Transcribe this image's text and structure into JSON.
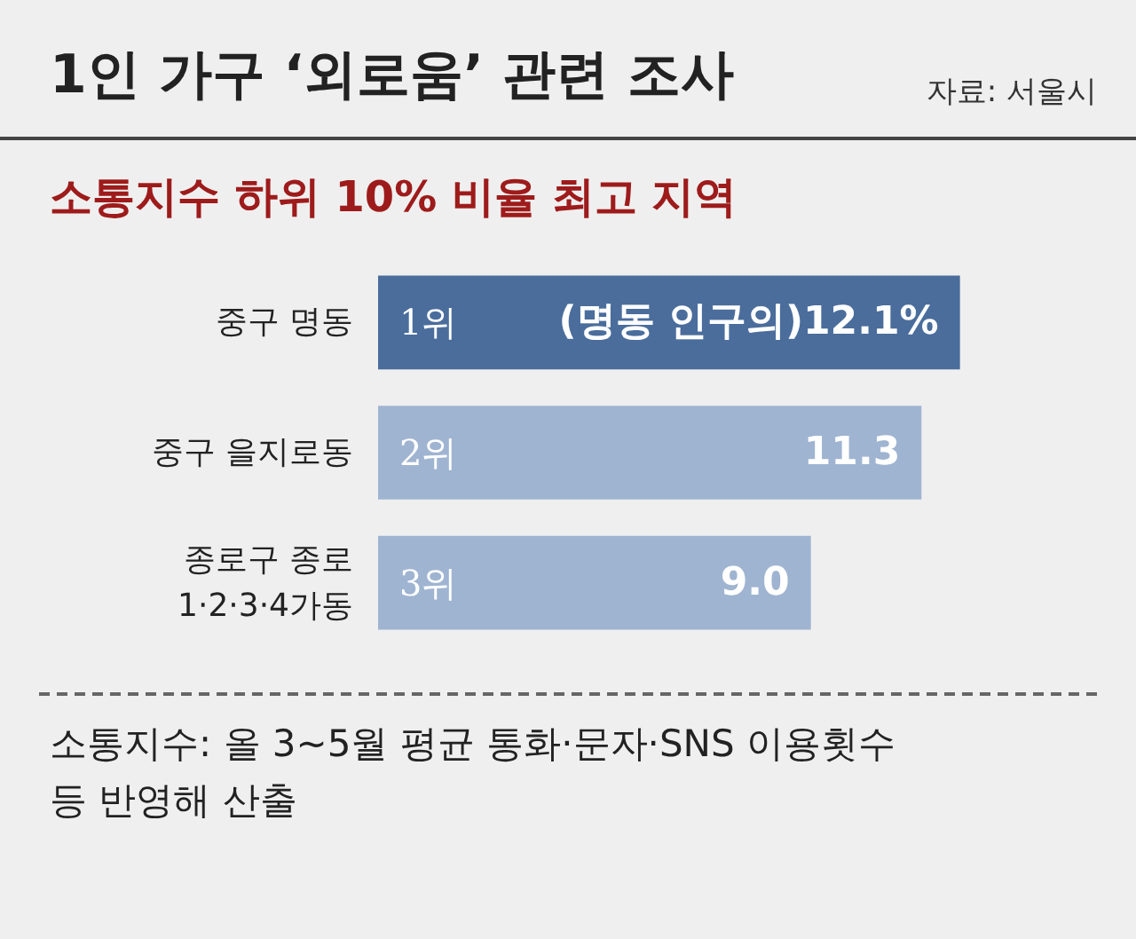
{
  "chart_data": {
    "type": "bar",
    "orientation": "horizontal",
    "title": "1인 가구 ‘외로움’ 관련 조사",
    "subtitle": "소통지수 하위 10% 비율 최고 지역",
    "categories": [
      "중구 명동",
      "중구 을지로동",
      "종로구 종로\n1·2·3·4가동"
    ],
    "values": [
      12.1,
      11.3,
      9.0
    ],
    "colors": [
      "#4a6d9c",
      "#9fb4d1",
      "#9fb4d1"
    ],
    "value_labels": [
      "(명동 인구의)12.1%",
      "11.3",
      "9.0"
    ],
    "annotations": [
      "자료: 서울시",
      {
        "text": "1위",
        "y": "중구 명동"
      },
      {
        "text": "2위",
        "y": "중구 을지로동"
      },
      {
        "text": "3위",
        "y": "종로구 종로\n1·2·3·4가동"
      },
      "소통지수: 올 3~5월 평균 통화·문자·SNS 이용횟수 등 반영해 산출"
    ]
  }
}
